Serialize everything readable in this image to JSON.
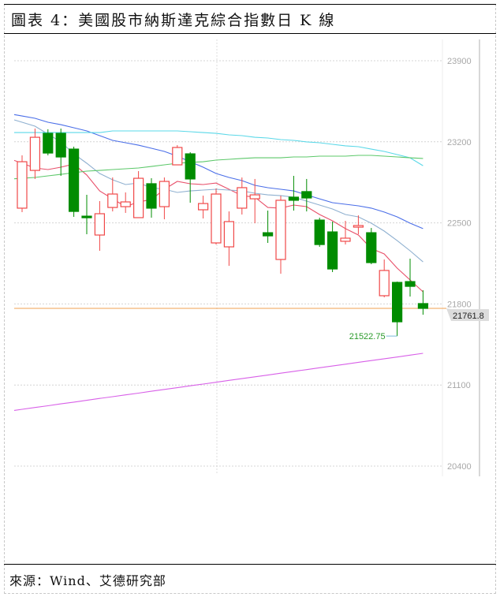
{
  "title": "圖表 4：美國股市納斯達克綜合指數日 K 線",
  "source": "來源：Wind、艾德研究部",
  "chart_data": {
    "type": "candlestick",
    "title": "圖表 4：美國股市納斯達克綜合指數日 K 線",
    "ylim": [
      20400,
      23900
    ],
    "yticks": [
      23900,
      23200,
      22500,
      21800,
      21100,
      20400
    ],
    "ytick_labels": [
      "23900",
      "23200",
      "22500",
      "21800",
      "21100",
      "20400"
    ],
    "grid": true,
    "y_axis_side": "right",
    "colors": {
      "up": "#f04848",
      "down": "#008c00",
      "last_price_line": "#f0a050",
      "annotation": "#2a9a2a"
    },
    "last_price_label": "21761.8",
    "last_price": 21761.8,
    "low_annotation": {
      "label": "21522.75",
      "value": 21522.75,
      "index": 29
    },
    "candles": [
      {
        "o": 22627,
        "h": 23083,
        "l": 22593,
        "c": 23028
      },
      {
        "o": 22953,
        "h": 23314,
        "l": 22879,
        "c": 23239
      },
      {
        "o": 23273,
        "h": 23308,
        "l": 23083,
        "c": 23103
      },
      {
        "o": 23273,
        "h": 23314,
        "l": 22906,
        "c": 23069
      },
      {
        "o": 23137,
        "h": 23158,
        "l": 22552,
        "c": 22599
      },
      {
        "o": 22558,
        "h": 22742,
        "l": 22402,
        "c": 22545
      },
      {
        "o": 22395,
        "h": 22688,
        "l": 22259,
        "c": 22579
      },
      {
        "o": 22633,
        "h": 22892,
        "l": 22599,
        "c": 22749
      },
      {
        "o": 22640,
        "h": 22763,
        "l": 22586,
        "c": 22681
      },
      {
        "o": 22545,
        "h": 22947,
        "l": 22545,
        "c": 22885
      },
      {
        "o": 22838,
        "h": 22885,
        "l": 22545,
        "c": 22627
      },
      {
        "o": 22640,
        "h": 22892,
        "l": 22531,
        "c": 22858
      },
      {
        "o": 23001,
        "h": 23171,
        "l": 23001,
        "c": 23151
      },
      {
        "o": 23096,
        "h": 23110,
        "l": 22674,
        "c": 22879
      },
      {
        "o": 22613,
        "h": 22735,
        "l": 22538,
        "c": 22667
      },
      {
        "o": 22327,
        "h": 22797,
        "l": 22313,
        "c": 22749
      },
      {
        "o": 22293,
        "h": 22599,
        "l": 22129,
        "c": 22511
      },
      {
        "o": 22627,
        "h": 22892,
        "l": 22572,
        "c": 22804
      },
      {
        "o": 22708,
        "h": 22879,
        "l": 22497,
        "c": 22742
      },
      {
        "o": 22415,
        "h": 22606,
        "l": 22327,
        "c": 22388
      },
      {
        "o": 22184,
        "h": 22735,
        "l": 22061,
        "c": 22695
      },
      {
        "o": 22722,
        "h": 22906,
        "l": 22606,
        "c": 22695
      },
      {
        "o": 22770,
        "h": 22879,
        "l": 22599,
        "c": 22715
      },
      {
        "o": 22524,
        "h": 22545,
        "l": 22293,
        "c": 22313
      },
      {
        "o": 22422,
        "h": 22511,
        "l": 22075,
        "c": 22102
      },
      {
        "o": 22341,
        "h": 22518,
        "l": 22313,
        "c": 22368
      },
      {
        "o": 22463,
        "h": 22565,
        "l": 22402,
        "c": 22477
      },
      {
        "o": 22415,
        "h": 22456,
        "l": 22143,
        "c": 22157
      },
      {
        "o": 21871,
        "h": 22184,
        "l": 21857,
        "c": 22089
      },
      {
        "o": 21986,
        "h": 21993,
        "l": 21522.75,
        "c": 21646
      },
      {
        "o": 21993,
        "h": 22191,
        "l": 21864,
        "c": 21952
      },
      {
        "o": 21803,
        "h": 21918,
        "l": 21707,
        "c": 21761.8
      }
    ],
    "series": [
      {
        "color": "#e8506a",
        "values": [
          23015,
          22974,
          22960,
          22981,
          23008,
          22913,
          22776,
          22708,
          22640,
          22681,
          22701,
          22790,
          22858,
          22838,
          22831,
          22844,
          22790,
          22735,
          22722,
          22633,
          22627,
          22654,
          22640,
          22572,
          22518,
          22450,
          22395,
          22279,
          22232,
          22109,
          22007,
          21905
        ]
      },
      {
        "color": "#8fb0d0",
        "values": [
          23369,
          23335,
          23267,
          23199,
          23096,
          23015,
          22926,
          22872,
          22831,
          22844,
          22804,
          22790,
          22763,
          22776,
          22783,
          22790,
          22783,
          22776,
          22756,
          22742,
          22735,
          22722,
          22688,
          22654,
          22620,
          22572,
          22552,
          22497,
          22429,
          22347,
          22259,
          22163
        ]
      },
      {
        "color": "#4a6ee8",
        "values": [
          23423,
          23403,
          23369,
          23348,
          23321,
          23294,
          23253,
          23212,
          23192,
          23171,
          23144,
          23117,
          23076,
          23028,
          22981,
          22926,
          22892,
          22865,
          22824,
          22804,
          22790,
          22776,
          22742,
          22708,
          22674,
          22661,
          22647,
          22627,
          22593,
          22552,
          22497,
          22450
        ]
      },
      {
        "color": "#5ad8e8",
        "values": [
          23280,
          23280,
          23280,
          23280,
          23280,
          23280,
          23280,
          23294,
          23294,
          23294,
          23294,
          23294,
          23294,
          23287,
          23280,
          23273,
          23260,
          23253,
          23239,
          23233,
          23219,
          23212,
          23199,
          23192,
          23178,
          23165,
          23158,
          23137,
          23117,
          23090,
          23062,
          22994
        ]
      },
      {
        "color": "#5cc86a",
        "values": [
          22885,
          22892,
          22906,
          22919,
          22933,
          22947,
          22953,
          22960,
          22967,
          22974,
          22987,
          23001,
          23015,
          23022,
          23028,
          23042,
          23049,
          23056,
          23062,
          23062,
          23062,
          23069,
          23069,
          23076,
          23076,
          23076,
          23083,
          23083,
          23076,
          23069,
          23062,
          23056
        ]
      },
      {
        "color": "#d860e8",
        "values": [
          20890,
          20906,
          20921,
          20937,
          20952,
          20968,
          20984,
          20999,
          21015,
          21030,
          21046,
          21062,
          21077,
          21093,
          21108,
          21124,
          21140,
          21155,
          21171,
          21186,
          21202,
          21218,
          21233,
          21249,
          21264,
          21280,
          21296,
          21311,
          21327,
          21342,
          21358,
          21374
        ]
      }
    ]
  }
}
